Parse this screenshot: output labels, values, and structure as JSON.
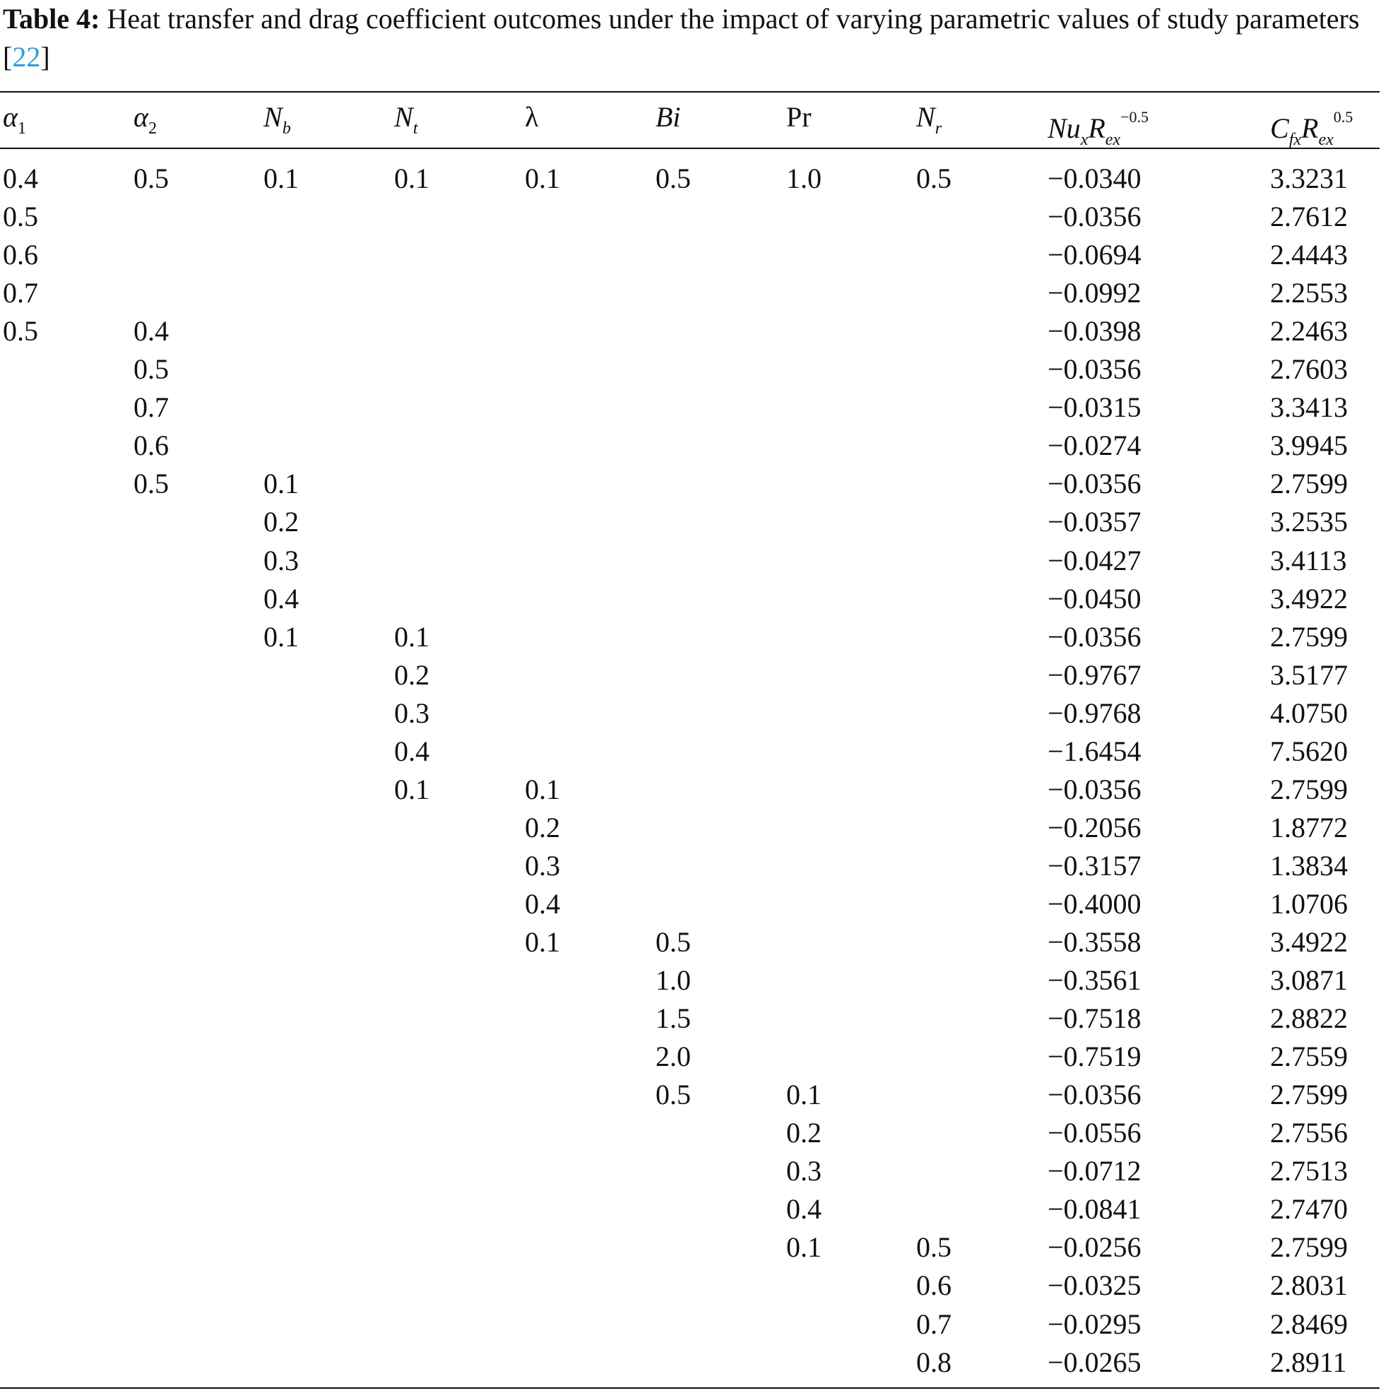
{
  "caption": {
    "label": "Table 4:",
    "text": " Heat transfer and drag coefficient outcomes under the impact of varying parametric values of study parameters [",
    "ref": "22",
    "end": "]"
  },
  "table": {
    "header": [
      [
        {
          "text": "α",
          "italic": true
        },
        {
          "text": "1",
          "pos": "sub"
        }
      ],
      [
        {
          "text": "α",
          "italic": true
        },
        {
          "text": "2",
          "pos": "sub"
        }
      ],
      [
        {
          "text": "N",
          "italic": true
        },
        {
          "text": "b",
          "italic": true,
          "pos": "sub"
        }
      ],
      [
        {
          "text": "N",
          "italic": true
        },
        {
          "text": "t",
          "italic": true,
          "pos": "sub"
        }
      ],
      [
        {
          "text": "λ"
        }
      ],
      [
        {
          "text": "Bi",
          "italic": true
        }
      ],
      [
        {
          "text": "Pr"
        }
      ],
      [
        {
          "text": "N",
          "italic": true
        },
        {
          "text": "r",
          "italic": true,
          "pos": "sub"
        }
      ],
      [
        {
          "text": "Nu",
          "italic": true
        },
        {
          "text": "x",
          "italic": true,
          "pos": "sub"
        },
        {
          "text": "R",
          "italic": true
        },
        {
          "text": "ex",
          "italic": true,
          "pos": "sub"
        },
        {
          "text": "−0.5",
          "pos": "sup"
        }
      ],
      [
        {
          "text": "C",
          "italic": true
        },
        {
          "text": "fx",
          "italic": true,
          "pos": "sub"
        },
        {
          "text": "R",
          "italic": true
        },
        {
          "text": "ex",
          "italic": true,
          "pos": "sub"
        },
        {
          "text": "0.5",
          "pos": "sup"
        }
      ]
    ],
    "rows": [
      [
        "0.4",
        "0.5",
        "0.1",
        "0.1",
        "0.1",
        "0.5",
        "1.0",
        "0.5",
        "−0.0340",
        "3.3231"
      ],
      [
        "0.5",
        null,
        null,
        null,
        null,
        null,
        null,
        null,
        "−0.0356",
        "2.7612"
      ],
      [
        "0.6",
        null,
        null,
        null,
        null,
        null,
        null,
        null,
        "−0.0694",
        "2.4443"
      ],
      [
        "0.7",
        null,
        null,
        null,
        null,
        null,
        null,
        null,
        "−0.0992",
        "2.2553"
      ],
      [
        "0.5",
        "0.4",
        null,
        null,
        null,
        null,
        null,
        null,
        "−0.0398",
        "2.2463"
      ],
      [
        null,
        "0.5",
        null,
        null,
        null,
        null,
        null,
        null,
        "−0.0356",
        "2.7603"
      ],
      [
        null,
        "0.7",
        null,
        null,
        null,
        null,
        null,
        null,
        "−0.0315",
        "3.3413"
      ],
      [
        null,
        "0.6",
        null,
        null,
        null,
        null,
        null,
        null,
        "−0.0274",
        "3.9945"
      ],
      [
        null,
        "0.5",
        "0.1",
        null,
        null,
        null,
        null,
        null,
        "−0.0356",
        "2.7599"
      ],
      [
        null,
        null,
        "0.2",
        null,
        null,
        null,
        null,
        null,
        "−0.0357",
        "3.2535"
      ],
      [
        null,
        null,
        "0.3",
        null,
        null,
        null,
        null,
        null,
        "−0.0427",
        "3.4113"
      ],
      [
        null,
        null,
        "0.4",
        null,
        null,
        null,
        null,
        null,
        "−0.0450",
        "3.4922"
      ],
      [
        null,
        null,
        "0.1",
        "0.1",
        null,
        null,
        null,
        null,
        "−0.0356",
        "2.7599"
      ],
      [
        null,
        null,
        null,
        "0.2",
        null,
        null,
        null,
        null,
        "−0.9767",
        "3.5177"
      ],
      [
        null,
        null,
        null,
        "0.3",
        null,
        null,
        null,
        null,
        "−0.9768",
        "4.0750"
      ],
      [
        null,
        null,
        null,
        "0.4",
        null,
        null,
        null,
        null,
        "−1.6454",
        "7.5620"
      ],
      [
        null,
        null,
        null,
        "0.1",
        "0.1",
        null,
        null,
        null,
        "−0.0356",
        "2.7599"
      ],
      [
        null,
        null,
        null,
        null,
        "0.2",
        null,
        null,
        null,
        "−0.2056",
        "1.8772"
      ],
      [
        null,
        null,
        null,
        null,
        "0.3",
        null,
        null,
        null,
        "−0.3157",
        "1.3834"
      ],
      [
        null,
        null,
        null,
        null,
        "0.4",
        null,
        null,
        null,
        "−0.4000",
        "1.0706"
      ],
      [
        null,
        null,
        null,
        null,
        "0.1",
        "0.5",
        null,
        null,
        "−0.3558",
        "3.4922"
      ],
      [
        null,
        null,
        null,
        null,
        null,
        "1.0",
        null,
        null,
        "−0.3561",
        "3.0871"
      ],
      [
        null,
        null,
        null,
        null,
        null,
        "1.5",
        null,
        null,
        "−0.7518",
        "2.8822"
      ],
      [
        null,
        null,
        null,
        null,
        null,
        "2.0",
        null,
        null,
        "−0.7519",
        "2.7559"
      ],
      [
        null,
        null,
        null,
        null,
        null,
        "0.5",
        "0.1",
        null,
        "−0.0356",
        "2.7599"
      ],
      [
        null,
        null,
        null,
        null,
        null,
        null,
        "0.2",
        null,
        "−0.0556",
        "2.7556"
      ],
      [
        null,
        null,
        null,
        null,
        null,
        null,
        "0.3",
        null,
        "−0.0712",
        "2.7513"
      ],
      [
        null,
        null,
        null,
        null,
        null,
        null,
        "0.4",
        null,
        "−0.0841",
        "2.7470"
      ],
      [
        null,
        null,
        null,
        null,
        null,
        null,
        "0.1",
        "0.5",
        "−0.0256",
        "2.7599"
      ],
      [
        null,
        null,
        null,
        null,
        null,
        null,
        null,
        "0.6",
        "−0.0325",
        "2.8031"
      ],
      [
        null,
        null,
        null,
        null,
        null,
        null,
        null,
        "0.7",
        "−0.0295",
        "2.8469"
      ],
      [
        null,
        null,
        null,
        null,
        null,
        null,
        null,
        "0.8",
        "−0.0265",
        "2.8911"
      ]
    ]
  }
}
